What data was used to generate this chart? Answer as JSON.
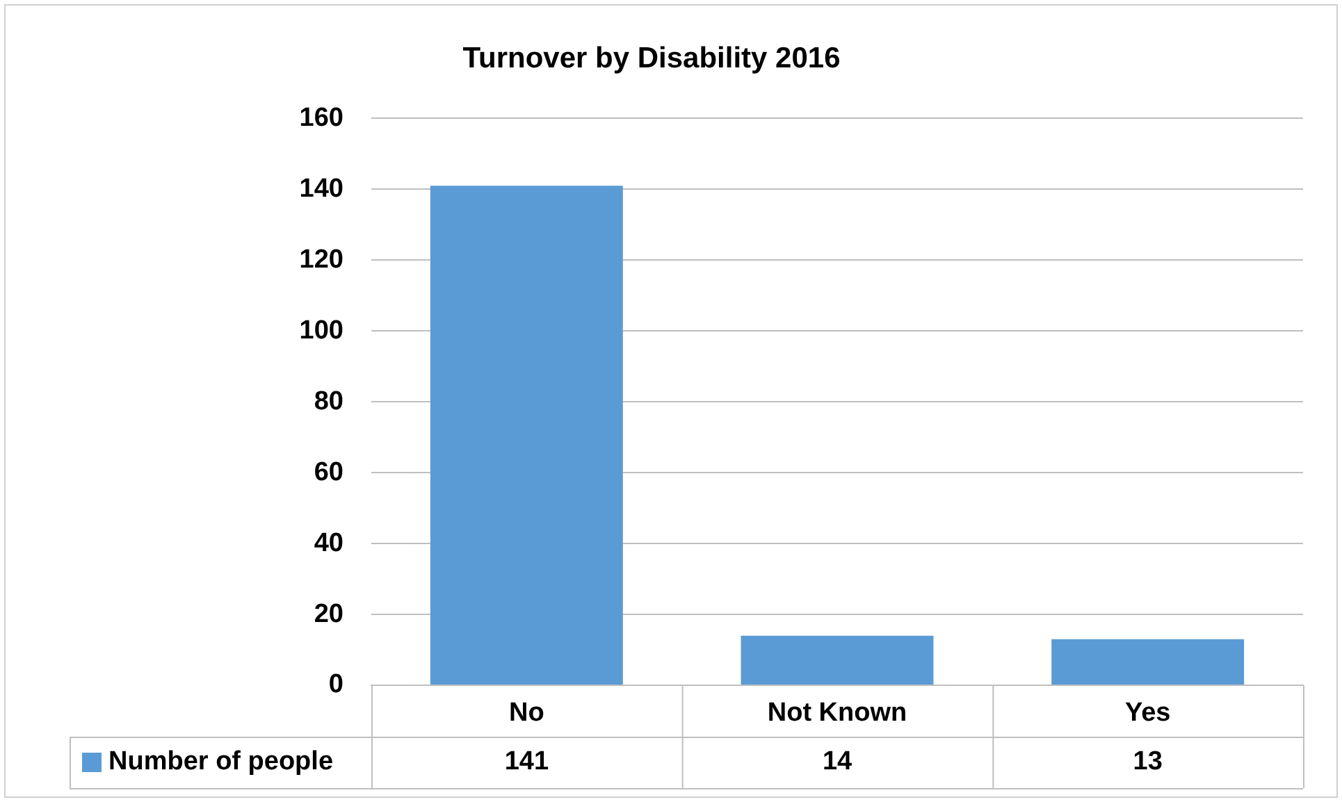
{
  "chart_data": {
    "type": "bar",
    "title": "Turnover by Disability 2016",
    "categories": [
      "No",
      "Not Known",
      "Yes"
    ],
    "series": [
      {
        "name": "Number of people",
        "color": "#5b9bd5",
        "values": [
          141,
          14,
          13
        ]
      }
    ],
    "ylim": [
      0,
      160
    ],
    "yticks": [
      0,
      20,
      40,
      60,
      80,
      100,
      120,
      140,
      160
    ],
    "grid": "y",
    "legend": "bottom",
    "data_labels": true
  }
}
